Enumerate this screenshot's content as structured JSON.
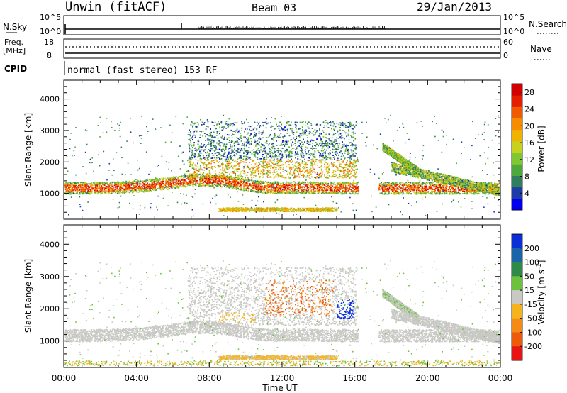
{
  "header": {
    "station": "Unwin (fitACF)",
    "beam": "Beam 03",
    "date": "29/Jan/2013"
  },
  "strip_panels": {
    "nsky_label": "N.Sky",
    "nsky_ticks": [
      "10^5",
      "10^0"
    ],
    "nsearch_label": "N.Search",
    "nsearch_ticks": [
      "10^5",
      "10^0"
    ],
    "freq_label": "Freq.",
    "freq_unit": "[MHz]",
    "freq_ticks": [
      "18",
      "8"
    ],
    "nave_label": "Nave",
    "nave_ticks": [
      "60",
      "0"
    ],
    "cpid_label": "CPID",
    "cpid_text": "normal (fast stereo) 153 RF"
  },
  "chart_data": [
    {
      "type": "heatmap",
      "name": "power",
      "ylabel": "Slant Range [km]",
      "yticks": [
        "1000",
        "2000",
        "3000",
        "4000"
      ],
      "ylim": [
        180,
        4600
      ],
      "xlim_hours": [
        0,
        24
      ],
      "colorbar_label": "Power [dB]",
      "colorbar_ticks": [
        "4",
        "8",
        "12",
        "16",
        "20",
        "24",
        "28"
      ],
      "colorbar_range": [
        0,
        30
      ],
      "colors": [
        "#0000ee",
        "#1e3ca8",
        "#2f7f5f",
        "#4fa83a",
        "#80c832",
        "#c8d21e",
        "#f0b400",
        "#f78c00",
        "#f05a00",
        "#e61e00",
        "#d20000"
      ]
    },
    {
      "type": "heatmap",
      "name": "velocity",
      "ylabel": "Slant Range [km]",
      "yticks": [
        "1000",
        "2000",
        "3000",
        "4000"
      ],
      "ylim": [
        180,
        4600
      ],
      "xlim_hours": [
        0,
        24
      ],
      "colorbar_label": "Velocity [m s^-1]",
      "colorbar_ticks": [
        "200",
        "100",
        "50",
        "15",
        "-15",
        "-50",
        "-100",
        "-200"
      ],
      "colors": [
        "#0a2fd6",
        "#1b64a8",
        "#2f8a4a",
        "#6cc23c",
        "#c8c8c4",
        "#f5b41e",
        "#f58a14",
        "#ec5a0a",
        "#e61414"
      ]
    }
  ],
  "xaxis": {
    "ticks": [
      "00:00",
      "04:00",
      "08:00",
      "12:00",
      "16:00",
      "20:00",
      "00:00"
    ],
    "label": "Time UT"
  }
}
